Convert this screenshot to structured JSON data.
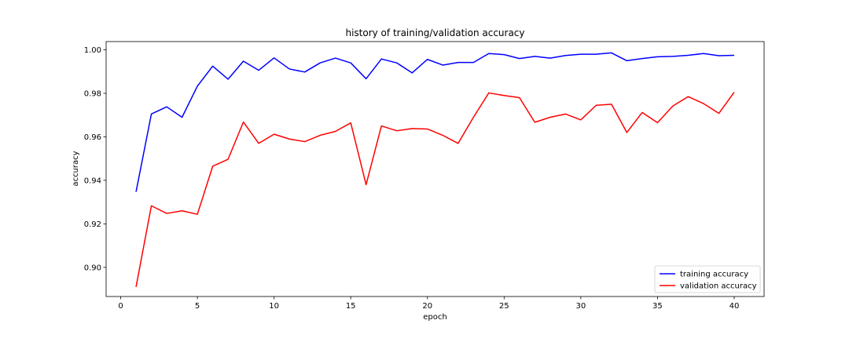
{
  "chart_data": {
    "type": "line",
    "title": "history of training/validation accuracy",
    "xlabel": "epoch",
    "ylabel": "accuracy",
    "xlim": [
      -0.95,
      41.95
    ],
    "ylim": [
      0.8866,
      1.0038
    ],
    "x_ticks": [
      0,
      5,
      10,
      15,
      20,
      25,
      30,
      35,
      40
    ],
    "y_ticks": [
      0.9,
      0.92,
      0.94,
      0.96,
      0.98,
      1.0
    ],
    "y_tick_labels": [
      "0.90",
      "0.92",
      "0.94",
      "0.96",
      "0.98",
      "1.00"
    ],
    "grid": false,
    "legend_position": "lower-right",
    "x": [
      1,
      2,
      3,
      4,
      5,
      6,
      7,
      8,
      9,
      10,
      11,
      12,
      13,
      14,
      15,
      16,
      17,
      18,
      19,
      20,
      21,
      22,
      23,
      24,
      25,
      26,
      27,
      28,
      29,
      30,
      31,
      32,
      33,
      34,
      35,
      36,
      37,
      38,
      39,
      40
    ],
    "series": [
      {
        "name": "training accuracy",
        "color": "#0000ff",
        "values": [
          0.9347,
          0.9705,
          0.9738,
          0.969,
          0.9833,
          0.9925,
          0.9865,
          0.9948,
          0.9906,
          0.9963,
          0.9912,
          0.9898,
          0.994,
          0.9962,
          0.994,
          0.9867,
          0.9958,
          0.994,
          0.9894,
          0.9956,
          0.993,
          0.9942,
          0.9942,
          0.9983,
          0.9978,
          0.996,
          0.997,
          0.9962,
          0.9974,
          0.998,
          0.998,
          0.9986,
          0.995,
          0.996,
          0.9968,
          0.997,
          0.9975,
          0.9983,
          0.9973,
          0.9975
        ]
      },
      {
        "name": "validation accuracy",
        "color": "#ff0000",
        "values": [
          0.891,
          0.9283,
          0.9248,
          0.926,
          0.9244,
          0.9465,
          0.9497,
          0.9668,
          0.957,
          0.9612,
          0.959,
          0.9578,
          0.9607,
          0.9625,
          0.9664,
          0.938,
          0.965,
          0.9628,
          0.9638,
          0.9636,
          0.9607,
          0.957,
          0.969,
          0.9802,
          0.979,
          0.978,
          0.9667,
          0.969,
          0.9705,
          0.9678,
          0.9745,
          0.975,
          0.962,
          0.9712,
          0.9665,
          0.9742,
          0.9785,
          0.9753,
          0.9708,
          0.9805
        ]
      }
    ]
  }
}
